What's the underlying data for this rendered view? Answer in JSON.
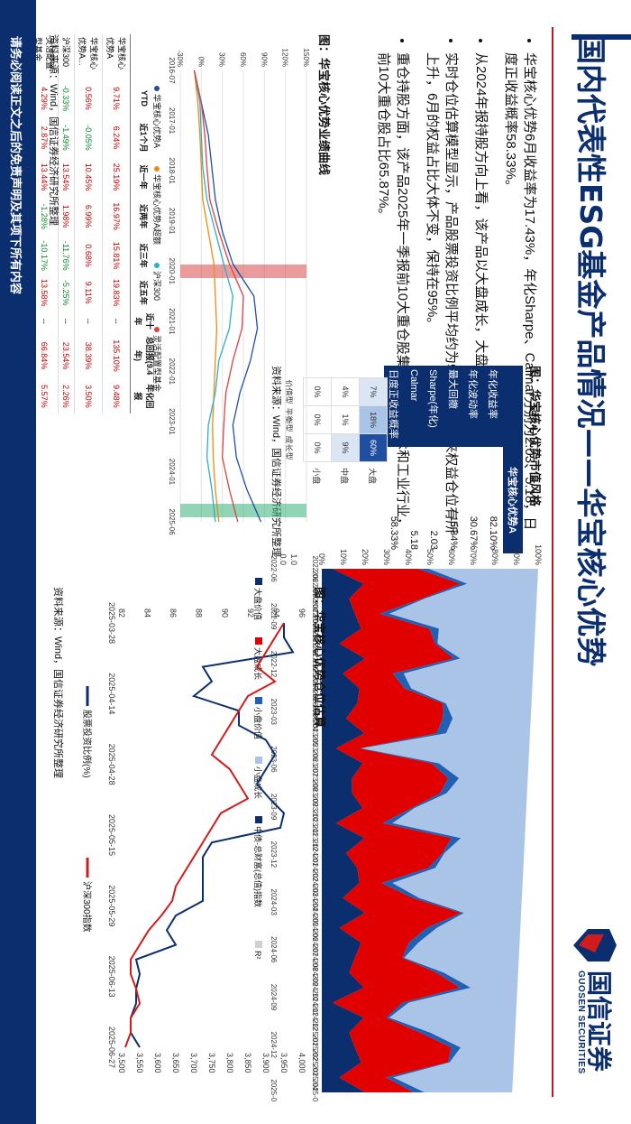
{
  "header": {
    "title": "国内代表性ESG基金产品情况——华宝核心优势",
    "logo_cn": "国信证券",
    "logo_en": "GUOSEN SECURITIES"
  },
  "bullets": [
    "华宝核心优势6月收益率为17.43%，年化Sharpe、Calmar分别为2.03、5.18，日度正收益概率58.33%。",
    "从2024年报持股方向上看，该产品以大盘成长，大盘平衡为主。",
    "实时仓位估算模型显示，产品股票投资比例平均约为90%，5月以来权益仓位有所上升，6月的权益占比大体不变，保持在95%。",
    "重仓持股方面，该产品2025年一季报前10大重仓股集中在信息技术和工业行业，前10大重仓股占比65.87%。"
  ],
  "style_panel": {
    "figure_title": "图：华宝核心优势市值风格",
    "fund_name": "华宝核心优势A",
    "metrics": [
      {
        "label": "年化收益率",
        "value": "82.10%"
      },
      {
        "label": "年化波动率",
        "value": "30.67%"
      },
      {
        "label": "最大回撤",
        "value": "-15.84%"
      },
      {
        "label": "Sharpe(年化)",
        "value": "2.03"
      },
      {
        "label": "Calmar",
        "value": "5.18"
      },
      {
        "label": "日度正收益概率",
        "value": "58.33%"
      }
    ],
    "grid": {
      "rows": [
        "大盘",
        "中盘",
        "小盘"
      ],
      "cols": [
        "价值型",
        "平衡型",
        "成长型"
      ],
      "cells": [
        [
          "7%",
          "18%",
          "60%"
        ],
        [
          "4%",
          "1%",
          "9%"
        ],
        [
          "0%",
          "0%",
          "0%"
        ]
      ]
    },
    "source": "资料来源：Wind，国信证券经济研究所整理"
  },
  "area_chart": {
    "ylabels": [
      "100%",
      "90%",
      "80%",
      "70%",
      "60%",
      "50%",
      "40%",
      "30%",
      "20%",
      "10%",
      "0%"
    ],
    "xlabels": [
      "2022-06",
      "2022-07",
      "2022-08",
      "2022-09",
      "2022-10",
      "2022-11",
      "2022-12",
      "2023-01",
      "2023-02",
      "2023-03",
      "2023-04",
      "2023-05",
      "2023-06",
      "2023-07",
      "2023-08",
      "2023-09",
      "2023-10",
      "2023-11",
      "2023-12",
      "2024-01",
      "2024-02",
      "2024-03",
      "2024-04",
      "2024-05",
      "2024-06",
      "2024-07",
      "2024-08",
      "2024-09",
      "2024-10",
      "2024-11",
      "2024-12",
      "2025-01",
      "2025-02",
      "2025-03",
      "2025-04",
      "2025-05"
    ],
    "r2_ticks": [
      "1.0",
      "0.0"
    ],
    "r2_x": [
      "2022-06",
      "2022-09",
      "2022-12",
      "2023-03",
      "2023-06",
      "2023-09",
      "2023-12",
      "2024-03",
      "2024-06",
      "2024-09",
      "2024-12",
      "2025-03"
    ],
    "legend": [
      "大盘价值",
      "大盘成长",
      "小盘价值",
      "小盘成长",
      "中债-总财富(总值)指数",
      "R²"
    ],
    "colors": {
      "dark": "#0b2e6e",
      "red": "#e00000",
      "mid": "#1f5fb4",
      "light": "#a9c4e6",
      "gray": "#d0d0d0"
    }
  },
  "perf_chart": {
    "figure_title": "图：华宝核心优势业绩曲线",
    "yticks": [
      "150%",
      "120%",
      "90%",
      "60%",
      "30%",
      "0%",
      "-30%"
    ],
    "xticks": [
      "2016-07",
      "2017-01",
      "2018-01",
      "2019-01",
      "2020-01",
      "2021-01",
      "2022-01",
      "2023-01",
      "2024-01",
      "2025-06"
    ],
    "legend": [
      "华宝核心优势A",
      "华宝核心优势A超额",
      "沪深300",
      "灵活配置型基金"
    ],
    "colors": [
      "#1f4fa0",
      "#f08a10",
      "#2ab0c8",
      "#e04040"
    ],
    "table": {
      "headers": [
        "",
        "YTD",
        "近1个月",
        "近一年",
        "近两年",
        "近三年",
        "近五年",
        "近十年",
        "总回报(9.4年)",
        "年化回报"
      ],
      "rows": [
        {
          "name": "华宝核心优势A",
          "cells": [
            "9.71%",
            "6.24%",
            "25.19%",
            "16.97%",
            "15.81%",
            "19.83%",
            "--",
            "135.10%",
            "9.48%"
          ]
        },
        {
          "name": "华宝核心优势A...",
          "cells": [
            "0.56%",
            "-0.05%",
            "10.45%",
            "6.99%",
            "0.68%",
            "9.11%",
            "--",
            "38.39%",
            "3.50%"
          ]
        },
        {
          "name": "沪深300",
          "cells": [
            "-0.33%",
            "-1.49%",
            "13.54%",
            "1.98%",
            "-11.76%",
            "-5.25%",
            "--",
            "23.54%",
            "2.26%"
          ]
        },
        {
          "name": "灵活配置型基金",
          "cells": [
            "4.29%",
            "2.87%",
            "13.44%",
            "-1.28%",
            "-10.17%",
            "13.58%",
            "--",
            "66.84%",
            "5.57%"
          ]
        },
        {
          "name": "同类排名",
          "cells": [
            "424/2327",
            "514/2327",
            "397/2283",
            "175/2175",
            "129/2062",
            "69/1769",
            "--",
            "77/761",
            "77/761"
          ]
        }
      ]
    },
    "source": "资料来源：Wind，国信证券经济研究所整理"
  },
  "position_chart": {
    "figure_title": "图：华宝核心优势仓位估算",
    "yleft": [
      "96",
      "94",
      "92",
      "90",
      "88",
      "86",
      "84",
      "82"
    ],
    "yright": [
      "4,000",
      "3,950",
      "3,900",
      "3,850",
      "3,800",
      "3,750",
      "3,700",
      "3,650",
      "3,600",
      "3,550",
      "3,500"
    ],
    "xticks": [
      "2025-03-28",
      "2025-04-14",
      "2025-04-28",
      "2025-05-15",
      "2025-05-29",
      "2025-06-13",
      "2025-06-27"
    ],
    "legend": [
      "股票投资比例(%)",
      "沪深300指数"
    ],
    "colors": {
      "stock": "#0b2e6e",
      "index": "#d01c1c"
    },
    "source": "资料来源：Wind，国信证券经济研究所整理"
  },
  "footer": {
    "text": "请务必阅读正文之后的免责声明及其项下所有内容"
  }
}
